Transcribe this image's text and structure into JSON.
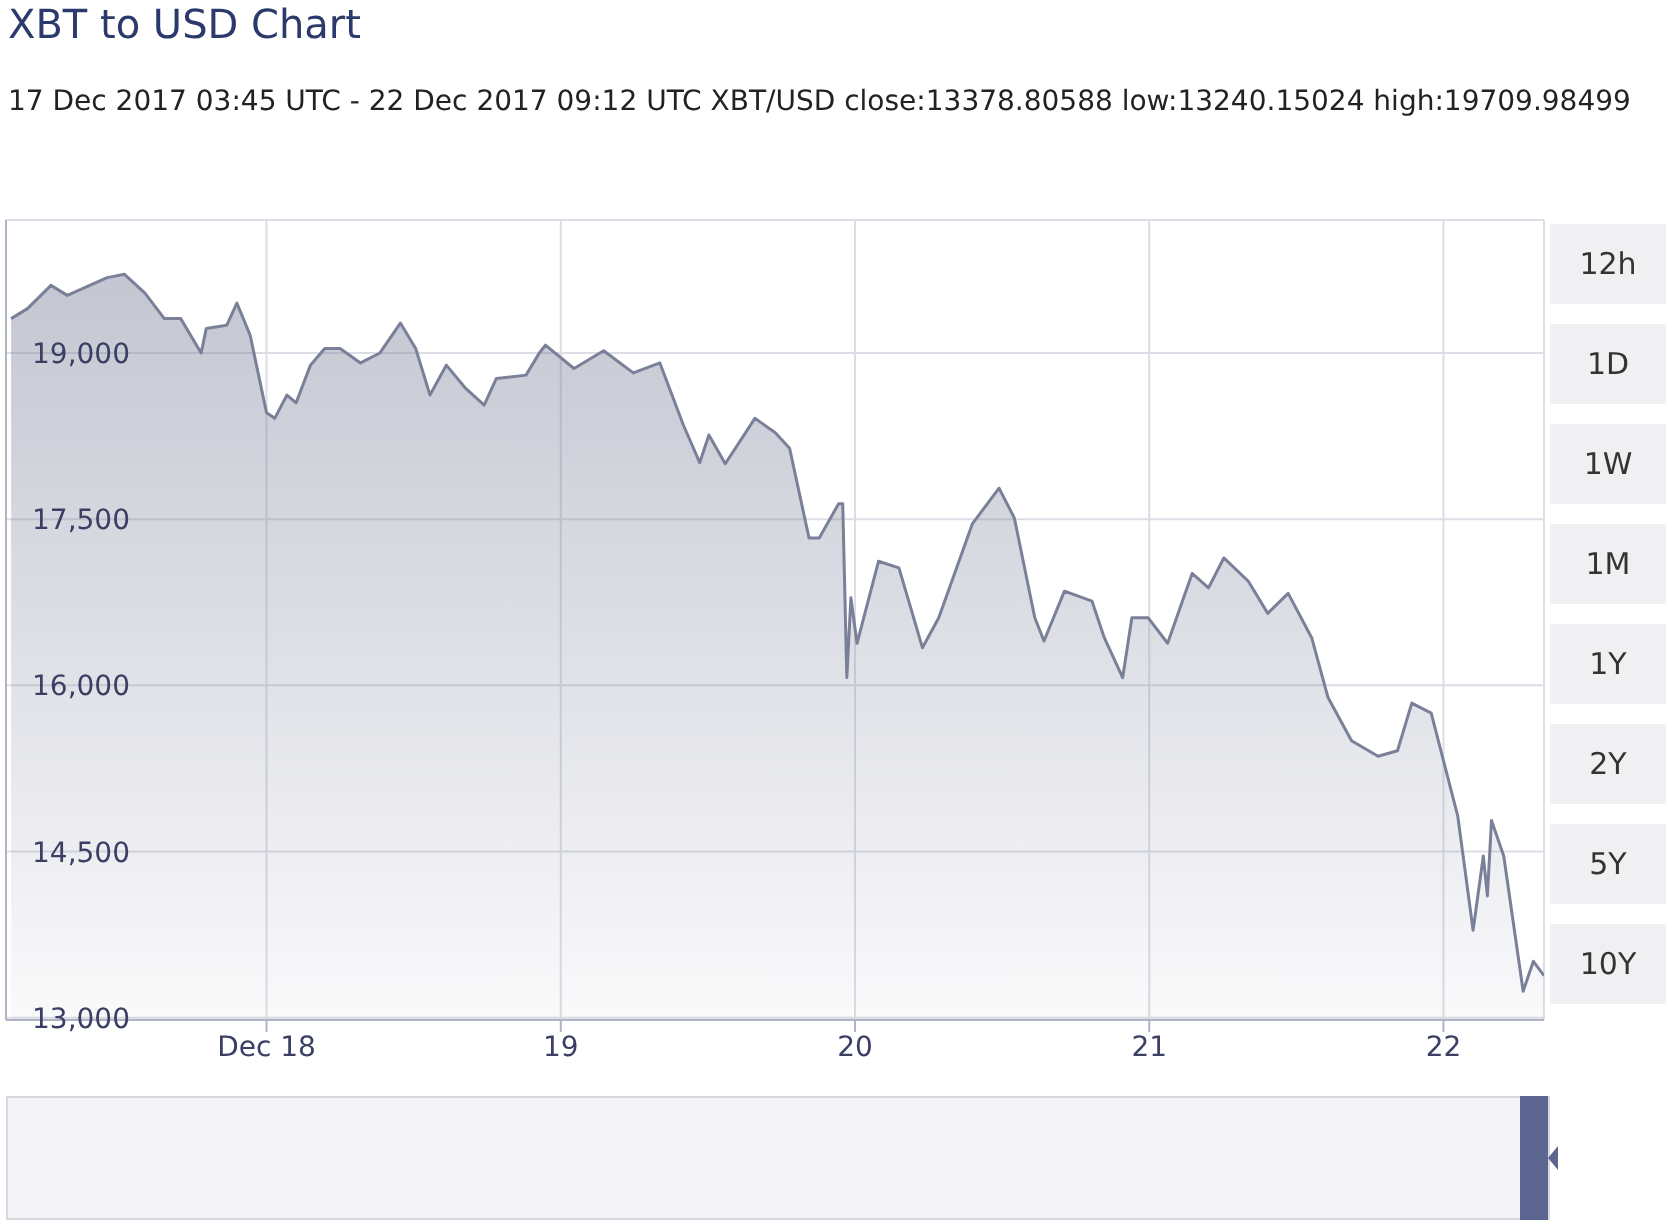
{
  "chart_data": {
    "type": "area",
    "title": "XBT to USD Chart",
    "subtitle": "17 Dec 2017 03:45 UTC - 22 Dec 2017 09:12 UTC    XBT/USD close:13378.80588 low:13240.15024 high:19709.98499",
    "annotations": [
      "12h",
      "1D",
      "1W",
      "1M",
      "1Y",
      "2Y",
      "5Y",
      "10Y"
    ],
    "x": [
      "2017-12-17T03:10",
      "2017-12-17T04:30",
      "2017-12-17T06:25",
      "2017-12-17T07:45",
      "2017-12-17T11:00",
      "2017-12-17T12:25",
      "2017-12-17T14:05",
      "2017-12-17T15:40",
      "2017-12-17T17:00",
      "2017-12-17T18:40",
      "2017-12-17T19:05",
      "2017-12-17T20:45",
      "2017-12-17T21:35",
      "2017-12-17T22:40",
      "2017-12-18T00:00",
      "2017-12-18T00:40",
      "2017-12-18T01:40",
      "2017-12-18T02:25",
      "2017-12-18T03:35",
      "2017-12-18T04:45",
      "2017-12-18T06:00",
      "2017-12-18T07:40",
      "2017-12-18T09:15",
      "2017-12-18T10:55",
      "2017-12-18T12:10",
      "2017-12-18T13:20",
      "2017-12-18T14:40",
      "2017-12-18T16:15",
      "2017-12-18T17:45",
      "2017-12-18T18:45",
      "2017-12-18T21:10",
      "2017-12-18T22:15",
      "2017-12-18T22:45",
      "2017-12-19T01:05",
      "2017-12-19T03:30",
      "2017-12-19T05:55",
      "2017-12-19T08:05",
      "2017-12-19T10:00",
      "2017-12-19T11:20",
      "2017-12-19T12:05",
      "2017-12-19T13:25",
      "2017-12-19T15:50",
      "2017-12-19T17:30",
      "2017-12-19T18:40",
      "2017-12-19T20:15",
      "2017-12-19T21:05",
      "2017-12-19T22:40",
      "2017-12-19T23:00",
      "2017-12-19T23:20",
      "2017-12-19T23:40",
      "2017-12-20T00:10",
      "2017-12-20T01:55",
      "2017-12-20T03:35",
      "2017-12-20T05:30",
      "2017-12-20T06:50",
      "2017-12-20T09:35",
      "2017-12-20T11:45",
      "2017-12-20T13:00",
      "2017-12-20T13:20",
      "2017-12-20T14:40",
      "2017-12-20T15:25",
      "2017-12-20T17:05",
      "2017-12-20T19:20",
      "2017-12-20T20:20",
      "2017-12-20T21:50",
      "2017-12-20T22:35",
      "2017-12-20T23:55",
      "2017-12-21T01:30",
      "2017-12-21T03:30",
      "2017-12-21T04:50",
      "2017-12-21T06:05",
      "2017-12-21T08:05",
      "2017-12-21T09:40",
      "2017-12-21T11:20",
      "2017-12-21T13:15",
      "2017-12-21T14:35",
      "2017-12-21T16:30",
      "2017-12-21T18:40",
      "2017-12-21T20:15",
      "2017-12-21T21:25",
      "2017-12-21T23:00",
      "2017-12-22T01:10",
      "2017-12-22T02:25",
      "2017-12-22T03:15",
      "2017-12-22T03:35",
      "2017-12-22T03:55",
      "2017-12-22T04:55",
      "2017-12-22T06:30",
      "2017-12-22T07:20",
      "2017-12-22T08:12"
    ],
    "values": [
      19310,
      19400,
      19610,
      19520,
      19680,
      19710,
      19540,
      19310,
      19310,
      19000,
      19220,
      19250,
      19450,
      19160,
      18460,
      18410,
      18620,
      18550,
      18890,
      19040,
      19040,
      18910,
      19000,
      19270,
      19040,
      18620,
      18890,
      18680,
      18530,
      18770,
      18800,
      19000,
      19070,
      18860,
      19020,
      18820,
      18910,
      18350,
      18010,
      18260,
      18000,
      18410,
      18280,
      18140,
      17330,
      17330,
      17640,
      17640,
      16070,
      16790,
      16380,
      17120,
      17060,
      16340,
      16610,
      17460,
      17780,
      17510,
      17330,
      16610,
      16400,
      16850,
      16760,
      16430,
      16070,
      16610,
      16610,
      16380,
      17010,
      16880,
      17150,
      16940,
      16650,
      16830,
      16430,
      15890,
      15500,
      15360,
      15410,
      15840,
      15750,
      14820,
      13790,
      14460,
      14100,
      14780,
      14460,
      13240,
      13510,
      13380
    ],
    "color": "#7b8099",
    "xlim": [
      "2017-12-17T02:45",
      "2017-12-22T08:12"
    ],
    "xticks": [
      {
        "value": "2017-12-18",
        "label": "Dec 18"
      },
      {
        "value": "2017-12-19",
        "label": "19"
      },
      {
        "value": "2017-12-20",
        "label": "20"
      },
      {
        "value": "2017-12-21",
        "label": "21"
      },
      {
        "value": "2017-12-22",
        "label": "22"
      }
    ],
    "ylim": [
      12980,
      20200
    ],
    "yticks": [
      {
        "value": 13000,
        "label": "13,000"
      },
      {
        "value": 14500,
        "label": "14,500"
      },
      {
        "value": 16000,
        "label": "16,000"
      },
      {
        "value": 17500,
        "label": "17,500"
      },
      {
        "value": 19000,
        "label": "19,000"
      }
    ],
    "grid": true,
    "legend": false,
    "marker": "none",
    "line_style": "solid"
  }
}
